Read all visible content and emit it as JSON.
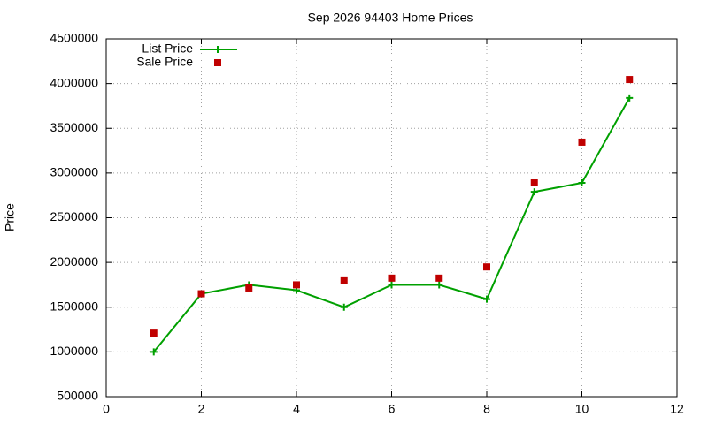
{
  "chart_data": {
    "type": "line",
    "title": "Sep 2026 94403 Home Prices",
    "y_label": "Price",
    "x": [
      1,
      2,
      3,
      4,
      5,
      6,
      7,
      8,
      9,
      10,
      11
    ],
    "series": [
      {
        "name": "List Price",
        "color": "#00a000",
        "mode": "linespoints",
        "marker": "plus",
        "values": [
          1000000,
          1650000,
          1750000,
          1690000,
          1500000,
          1750000,
          1750000,
          1590000,
          2790000,
          2890000,
          3840000
        ]
      },
      {
        "name": "Sale Price",
        "color": "#c00000",
        "mode": "points",
        "marker": "square",
        "values": [
          1210000,
          1650000,
          1715000,
          1750000,
          1795000,
          1825000,
          1825000,
          1950000,
          2890000,
          3345000,
          4045000
        ]
      }
    ],
    "xlim": [
      0,
      12
    ],
    "xticks": [
      0,
      2,
      4,
      6,
      8,
      10,
      12
    ],
    "ylim": [
      500000,
      4500000
    ],
    "yticks": [
      500000,
      1000000,
      1500000,
      2000000,
      2500000,
      3000000,
      3500000,
      4000000,
      4500000
    ],
    "grid": true,
    "legend": "top-left"
  }
}
